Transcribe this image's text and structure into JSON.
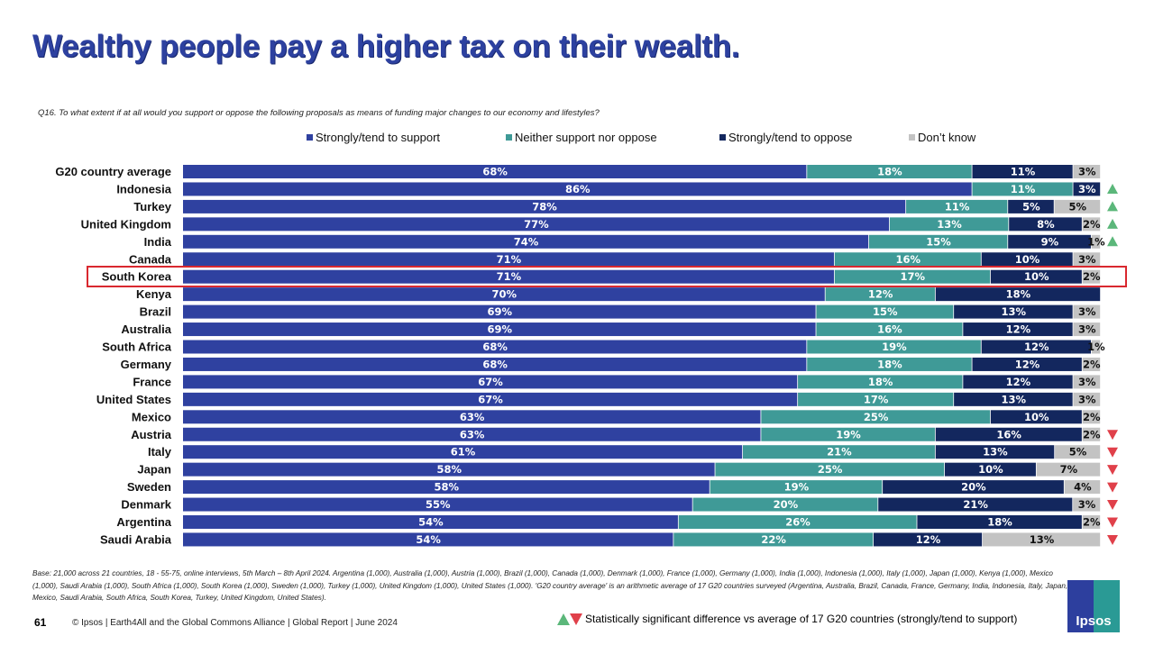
{
  "title": "Wealthy people pay a higher tax on their wealth.",
  "question": "Q16. To what extent if at all would you support or oppose the following proposals as means of funding major changes to our economy and lifestyles?",
  "chart_data": {
    "type": "stacked-bar-horizontal",
    "categories": [
      "G20 country average",
      "Indonesia",
      "Turkey",
      "United Kingdom",
      "India",
      "Canada",
      "South Korea",
      "Kenya",
      "Brazil",
      "Australia",
      "South Africa",
      "Germany",
      "France",
      "United States",
      "Mexico",
      "Austria",
      "Italy",
      "Japan",
      "Sweden",
      "Denmark",
      "Argentina",
      "Saudi Arabia"
    ],
    "series": [
      {
        "name": "Strongly/tend to support",
        "color": "#2F41A0",
        "values": [
          68,
          86,
          78,
          77,
          74,
          71,
          71,
          70,
          69,
          69,
          68,
          68,
          67,
          67,
          63,
          63,
          61,
          58,
          58,
          55,
          54,
          54
        ]
      },
      {
        "name": "Neither support nor oppose",
        "color": "#3F9A97",
        "values": [
          18,
          11,
          11,
          13,
          15,
          16,
          17,
          12,
          15,
          16,
          19,
          18,
          18,
          17,
          25,
          19,
          21,
          25,
          19,
          20,
          26,
          22
        ]
      },
      {
        "name": "Strongly/tend to oppose",
        "color": "#13275E",
        "values": [
          11,
          3,
          5,
          8,
          9,
          10,
          10,
          18,
          13,
          12,
          12,
          12,
          12,
          13,
          10,
          16,
          13,
          10,
          20,
          21,
          18,
          12
        ]
      },
      {
        "name": "Don’t know",
        "color": "#C3C3C3",
        "values": [
          3,
          null,
          5,
          2,
          1,
          3,
          2,
          null,
          3,
          3,
          1,
          2,
          3,
          3,
          2,
          2,
          5,
          7,
          4,
          3,
          2,
          13
        ]
      }
    ],
    "significance": [
      null,
      "up",
      "up",
      "up",
      "up",
      null,
      null,
      null,
      null,
      null,
      null,
      null,
      null,
      null,
      null,
      "down",
      "down",
      "down",
      "down",
      "down",
      "down",
      "down"
    ],
    "highlighted": "South Korea",
    "legend_position": "top",
    "unit": "%"
  },
  "footer": {
    "base": "Base: 21,000 across 21 countries, 18 - 55-75, online interviews, 5th March – 8th April 2024. Argentina (1,000), Australia (1,000), Austria (1,000), Brazil (1,000), Canada (1,000), Denmark (1,000), France (1,000), Germany (1,000), India (1,000), Indonesia (1,000), Italy (1,000), Japan (1,000), Kenya (1,000), Mexico (1,000), Saudi Arabia (1,000), South Africa (1,000), South Korea (1,000), Sweden (1,000), Turkey (1,000), United Kingdom (1,000), United States (1,000). 'G20 country average' is an arithmetic average of 17 G20 countries surveyed (Argentina, Australia, Brazil, Canada, France, Germany, India, Indonesia, Italy, Japan, Mexico, Saudi Arabia, South Africa, South Korea, Turkey, United Kingdom, United States).",
    "page": "61",
    "copyright": "© Ipsos | Earth4All and the Global Commons Alliance | Global Report | June 2024",
    "significance_note": "Statistically significant difference vs average of 17 G20 countries (strongly/tend to support)",
    "logo": "Ipsos"
  }
}
